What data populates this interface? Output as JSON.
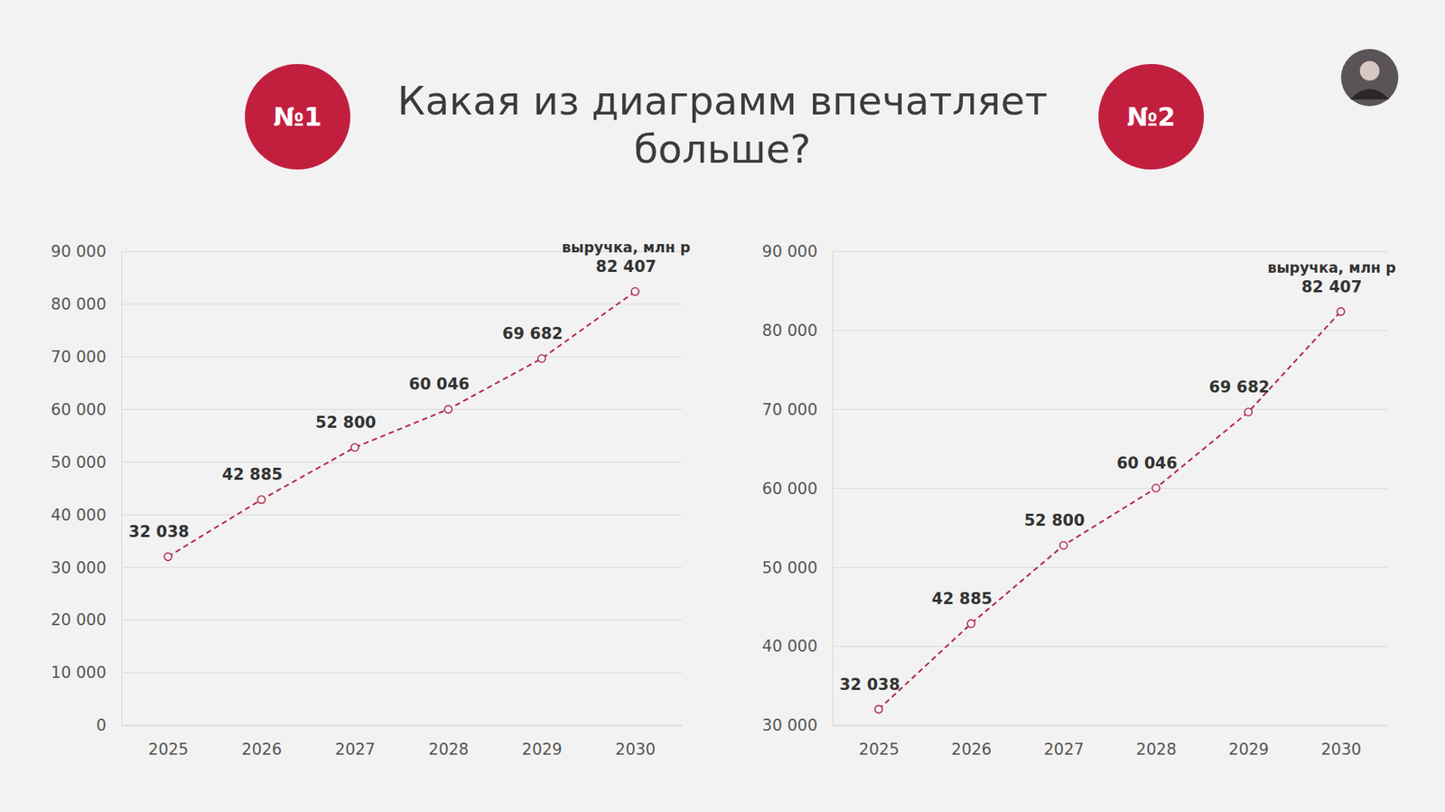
{
  "header": {
    "title": "Какая из диаграмм впечатляет больше?",
    "badges": [
      "№1",
      "№2"
    ]
  },
  "chart_data": [
    {
      "type": "line",
      "categories": [
        "2025",
        "2026",
        "2027",
        "2028",
        "2029",
        "2030"
      ],
      "series": [
        {
          "name": "выручка, млн р",
          "color": "#b3284a",
          "values": [
            32038,
            42885,
            52800,
            60046,
            69682,
            82407
          ],
          "value_labels": [
            "32 038",
            "42 885",
            "52 800",
            "60 046",
            "69 682",
            "82 407"
          ],
          "marker": "circle",
          "line_style": "dashed"
        }
      ],
      "ylim": [
        0,
        90000
      ],
      "yticks": [
        0,
        {
          "value": 10000,
          "label": "10 000"
        },
        {
          "value": 20000,
          "label": "20 000"
        },
        {
          "value": 30000,
          "label": "30 000"
        },
        {
          "value": 40000,
          "label": "40 000"
        },
        {
          "value": 50000,
          "label": "50 000"
        },
        {
          "value": 60000,
          "label": "60 000"
        },
        {
          "value": 70000,
          "label": "70 000"
        },
        {
          "value": 80000,
          "label": "80 000"
        },
        {
          "value": 90000,
          "label": "90 000"
        }
      ],
      "grid": true,
      "data_labels": true
    },
    {
      "type": "line",
      "categories": [
        "2025",
        "2026",
        "2027",
        "2028",
        "2029",
        "2030"
      ],
      "series": [
        {
          "name": "выручка, млн р",
          "color": "#b3284a",
          "values": [
            32038,
            42885,
            52800,
            60046,
            69682,
            82407
          ],
          "value_labels": [
            "32 038",
            "42 885",
            "52 800",
            "60 046",
            "69 682",
            "82 407"
          ],
          "marker": "circle",
          "line_style": "dashed"
        }
      ],
      "ylim": [
        30000,
        90000
      ],
      "yticks": [
        {
          "value": 30000,
          "label": "30 000"
        },
        {
          "value": 40000,
          "label": "40 000"
        },
        {
          "value": 50000,
          "label": "50 000"
        },
        {
          "value": 60000,
          "label": "60 000"
        },
        {
          "value": 70000,
          "label": "70 000"
        },
        {
          "value": 80000,
          "label": "80 000"
        },
        {
          "value": 90000,
          "label": "90 000"
        }
      ],
      "grid": true,
      "data_labels": true
    }
  ]
}
